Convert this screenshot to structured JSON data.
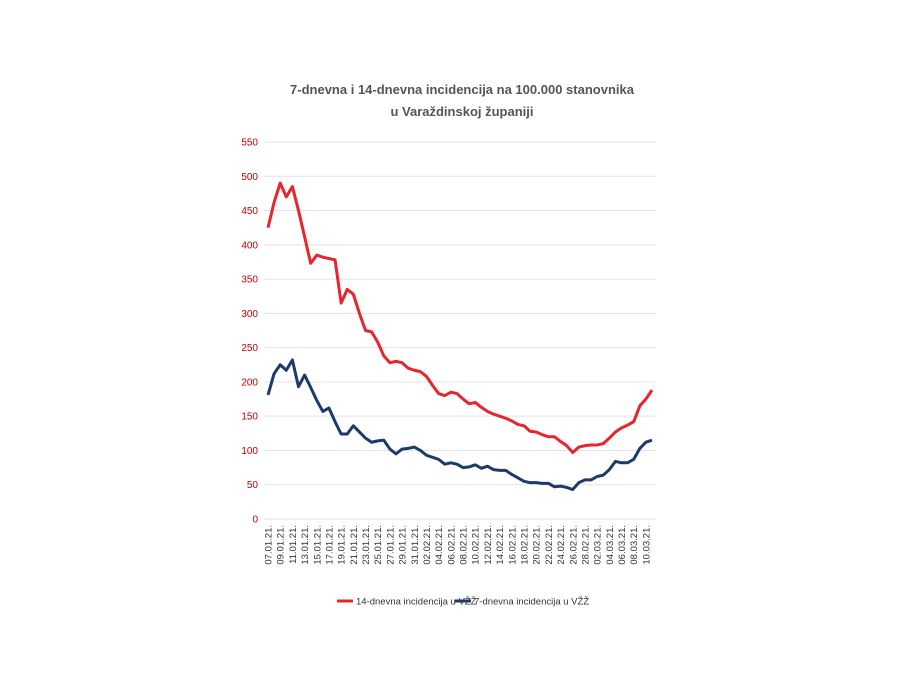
{
  "chart_data": {
    "type": "line",
    "title": [
      "7-dnevna i 14-dnevna incidencija na 100.000 stanovnika",
      "u Varaždinskoj županiji"
    ],
    "categories": [
      "07.01.21.",
      null,
      "09.01.21.",
      null,
      "11.01.21.",
      null,
      "13.01.21.",
      null,
      "15.01.21.",
      null,
      "17.01.21.",
      null,
      "19.01.21.",
      null,
      "21.01.21.",
      null,
      "23.01.21.",
      null,
      "25.01.21.",
      null,
      "27.01.21.",
      null,
      "29.01.21.",
      null,
      "31.01.21.",
      null,
      "02.02.21.",
      null,
      "04.02.21.",
      null,
      "06.02.21.",
      null,
      "08.02.21.",
      null,
      "10.02.21.",
      null,
      "12.02.21.",
      null,
      "14.02.21.",
      null,
      "16.02.21.",
      null,
      "18.02.21.",
      null,
      "20.02.21.",
      null,
      "22.02.21.",
      null,
      "24.02.21.",
      null,
      "26.02.21.",
      null,
      "28.02.21.",
      null,
      "02.03.21.",
      null,
      "04.03.21.",
      null,
      "06.03.21.",
      null,
      "08.03.21.",
      null,
      "10.03.21.",
      null
    ],
    "series": [
      {
        "name": "14-dnevna incidencija u VŽŽ",
        "color": "#e8242c",
        "values": [
          425,
          462,
          490,
          470,
          485,
          450,
          412,
          373,
          385,
          382,
          380,
          378,
          315,
          335,
          328,
          300,
          275,
          273,
          258,
          238,
          228,
          230,
          228,
          220,
          217,
          215,
          208,
          195,
          183,
          180,
          185,
          183,
          175,
          168,
          170,
          163,
          157,
          153,
          150,
          147,
          143,
          138,
          136,
          128,
          127,
          123,
          120,
          120,
          113,
          107,
          97,
          105,
          107,
          108,
          108,
          110,
          118,
          127,
          133,
          137,
          142,
          165,
          175,
          188
        ]
      },
      {
        "name": "7-dnevna incidencija u VŽŽ",
        "color": "#1c3a6b",
        "values": [
          181,
          212,
          225,
          217,
          232,
          193,
          210,
          192,
          173,
          157,
          162,
          142,
          124,
          124,
          136,
          127,
          118,
          112,
          114,
          115,
          102,
          95,
          102,
          103,
          105,
          100,
          93,
          90,
          87,
          80,
          82,
          80,
          75,
          76,
          79,
          74,
          77,
          72,
          71,
          71,
          65,
          60,
          55,
          53,
          53,
          52,
          52,
          47,
          48,
          46,
          43,
          53,
          57,
          57,
          62,
          64,
          72,
          84,
          82,
          82,
          87,
          103,
          112,
          115
        ]
      }
    ],
    "ylim": [
      0,
      550
    ],
    "yticks": [
      0,
      50,
      100,
      150,
      200,
      250,
      300,
      350,
      400,
      450,
      500,
      550
    ],
    "grid": true,
    "legend": "bottom"
  }
}
